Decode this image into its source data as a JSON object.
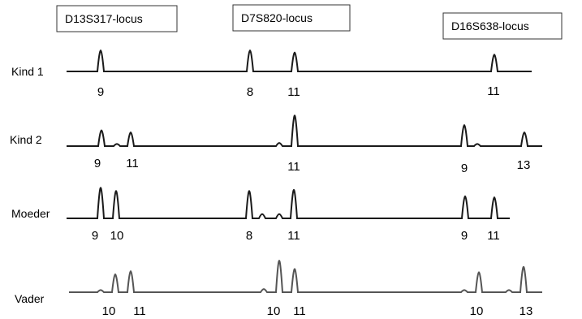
{
  "loci": [
    {
      "name": "D13S317-locus"
    },
    {
      "name": "D7S820-locus"
    },
    {
      "name": "D16S638-locus"
    }
  ],
  "rows": [
    {
      "label": "Kind 1",
      "alleles": [
        "9",
        "8",
        "11",
        "11"
      ],
      "peaks": [
        {
          "locus": 0,
          "height": 1.0
        },
        {
          "locus": 1,
          "height": 1.0
        },
        {
          "locus": 1,
          "height": 0.9
        },
        {
          "locus": 2,
          "height": 0.8
        }
      ]
    },
    {
      "label": "Kind 2",
      "alleles": [
        "9",
        "11",
        "11",
        "9",
        "13"
      ],
      "peaks": [
        {
          "locus": 0,
          "height": 0.75
        },
        {
          "locus": 0,
          "height": 0.1
        },
        {
          "locus": 0,
          "height": 0.65
        },
        {
          "locus": 1,
          "height": 0.15
        },
        {
          "locus": 1,
          "height": 1.45
        },
        {
          "locus": 2,
          "height": 1.0
        },
        {
          "locus": 2,
          "height": 0.1
        },
        {
          "locus": 2,
          "height": 0.65
        }
      ]
    },
    {
      "label": "Moeder",
      "alleles": [
        "9",
        "10",
        "8",
        "11",
        "9",
        "11"
      ],
      "peaks": [
        {
          "locus": 0,
          "height": 1.45
        },
        {
          "locus": 0,
          "height": 1.3
        },
        {
          "locus": 1,
          "height": 1.3
        },
        {
          "locus": 1,
          "height": 0.2
        },
        {
          "locus": 1,
          "height": 0.2
        },
        {
          "locus": 1,
          "height": 1.35
        },
        {
          "locus": 2,
          "height": 1.05
        },
        {
          "locus": 2,
          "height": 1.0
        }
      ]
    },
    {
      "label": "Vader",
      "alleles": [
        "10",
        "11",
        "10",
        "11",
        "10",
        "13"
      ],
      "peaks": [
        {
          "locus": 0,
          "height": 0.1
        },
        {
          "locus": 0,
          "height": 0.85
        },
        {
          "locus": 0,
          "height": 1.0
        },
        {
          "locus": 1,
          "height": 0.15
        },
        {
          "locus": 1,
          "height": 1.5
        },
        {
          "locus": 1,
          "height": 1.1
        },
        {
          "locus": 2,
          "height": 0.1
        },
        {
          "locus": 2,
          "height": 0.95
        },
        {
          "locus": 2,
          "height": 0.1
        },
        {
          "locus": 2,
          "height": 1.2
        }
      ]
    }
  ]
}
